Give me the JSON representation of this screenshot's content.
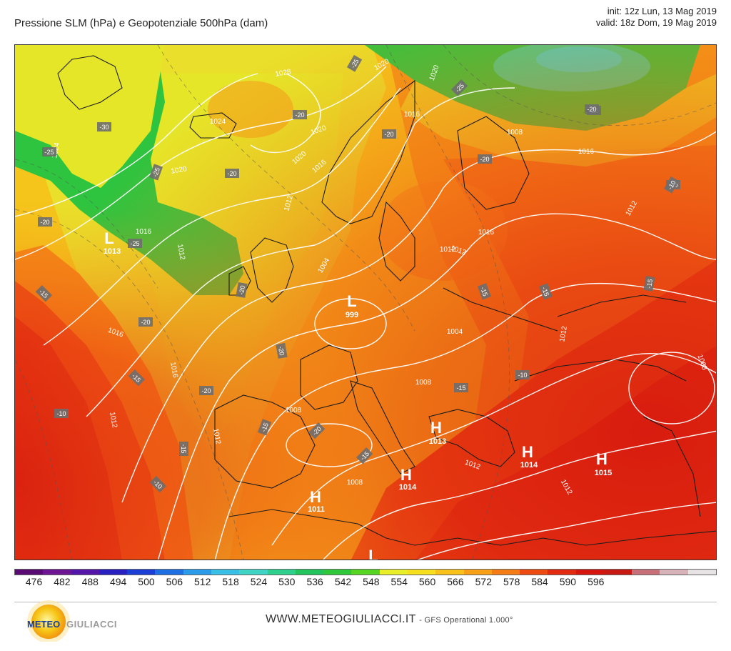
{
  "header": {
    "title": "Pressione SLM (hPa) e Geopotenziale 500hPa (dam)",
    "init": "init: 12z Lun, 13 Mag 2019",
    "valid": "valid: 18z Dom, 19 Mag 2019"
  },
  "color_scale": {
    "labels": [
      "476",
      "482",
      "488",
      "494",
      "500",
      "506",
      "512",
      "518",
      "524",
      "530",
      "536",
      "542",
      "548",
      "554",
      "560",
      "566",
      "572",
      "578",
      "584",
      "590",
      "596"
    ],
    "colors": [
      "#5a0a73",
      "#6d1592",
      "#5316a8",
      "#2a1fc0",
      "#1b3fd6",
      "#1e6fe3",
      "#2a9be8",
      "#39bfe6",
      "#3fd4c3",
      "#2fcf8e",
      "#23c45c",
      "#2fc83a",
      "#55d422",
      "#e8ef2a",
      "#f6df1f",
      "#f8c21b",
      "#f7a017",
      "#f57c14",
      "#ee4b12",
      "#e22a10",
      "#d4160f",
      "#c81a12",
      "#c7707a",
      "#d7b2b8",
      "#e7e3e4"
    ]
  },
  "pressure_centers": [
    {
      "type": "L",
      "value": "1013"
    },
    {
      "type": "L",
      "value": "999"
    },
    {
      "type": "H",
      "value": "1013"
    },
    {
      "type": "H",
      "value": "1014"
    },
    {
      "type": "H",
      "value": "1015"
    },
    {
      "type": "H",
      "value": "1014"
    },
    {
      "type": "H",
      "value": "1011"
    },
    {
      "type": "L",
      "value": ""
    }
  ],
  "isobar_labels": [
    "1028",
    "1024",
    "1024",
    "1020",
    "1020",
    "1020",
    "1016",
    "1016",
    "1016",
    "1016",
    "1016",
    "1016",
    "1016",
    "1012",
    "1012",
    "1012",
    "1012",
    "1012",
    "1012",
    "1012",
    "1012",
    "1012",
    "1012",
    "1008",
    "1008",
    "1008",
    "1008",
    "1008",
    "1004",
    "1004",
    "1020",
    "1020"
  ],
  "temp_labels": [
    "-25",
    "-20",
    "-25",
    "-30",
    "-25",
    "-25",
    "-20",
    "-20",
    "-20",
    "-20",
    "-20",
    "-20",
    "-25",
    "-20",
    "-15",
    "-15",
    "-15",
    "-15",
    "-10",
    "-10",
    "-15",
    "-15",
    "-20",
    "-20",
    "-20",
    "-20",
    "-15",
    "-10",
    "-20",
    "-15",
    "-15",
    "-10"
  ],
  "footer": {
    "website": "WWW.METEOGIULIACCI.IT",
    "model": "- GFS Operational 1.000°",
    "logo_text_1": "METEO",
    "logo_text_2": "GIULIACCI"
  }
}
